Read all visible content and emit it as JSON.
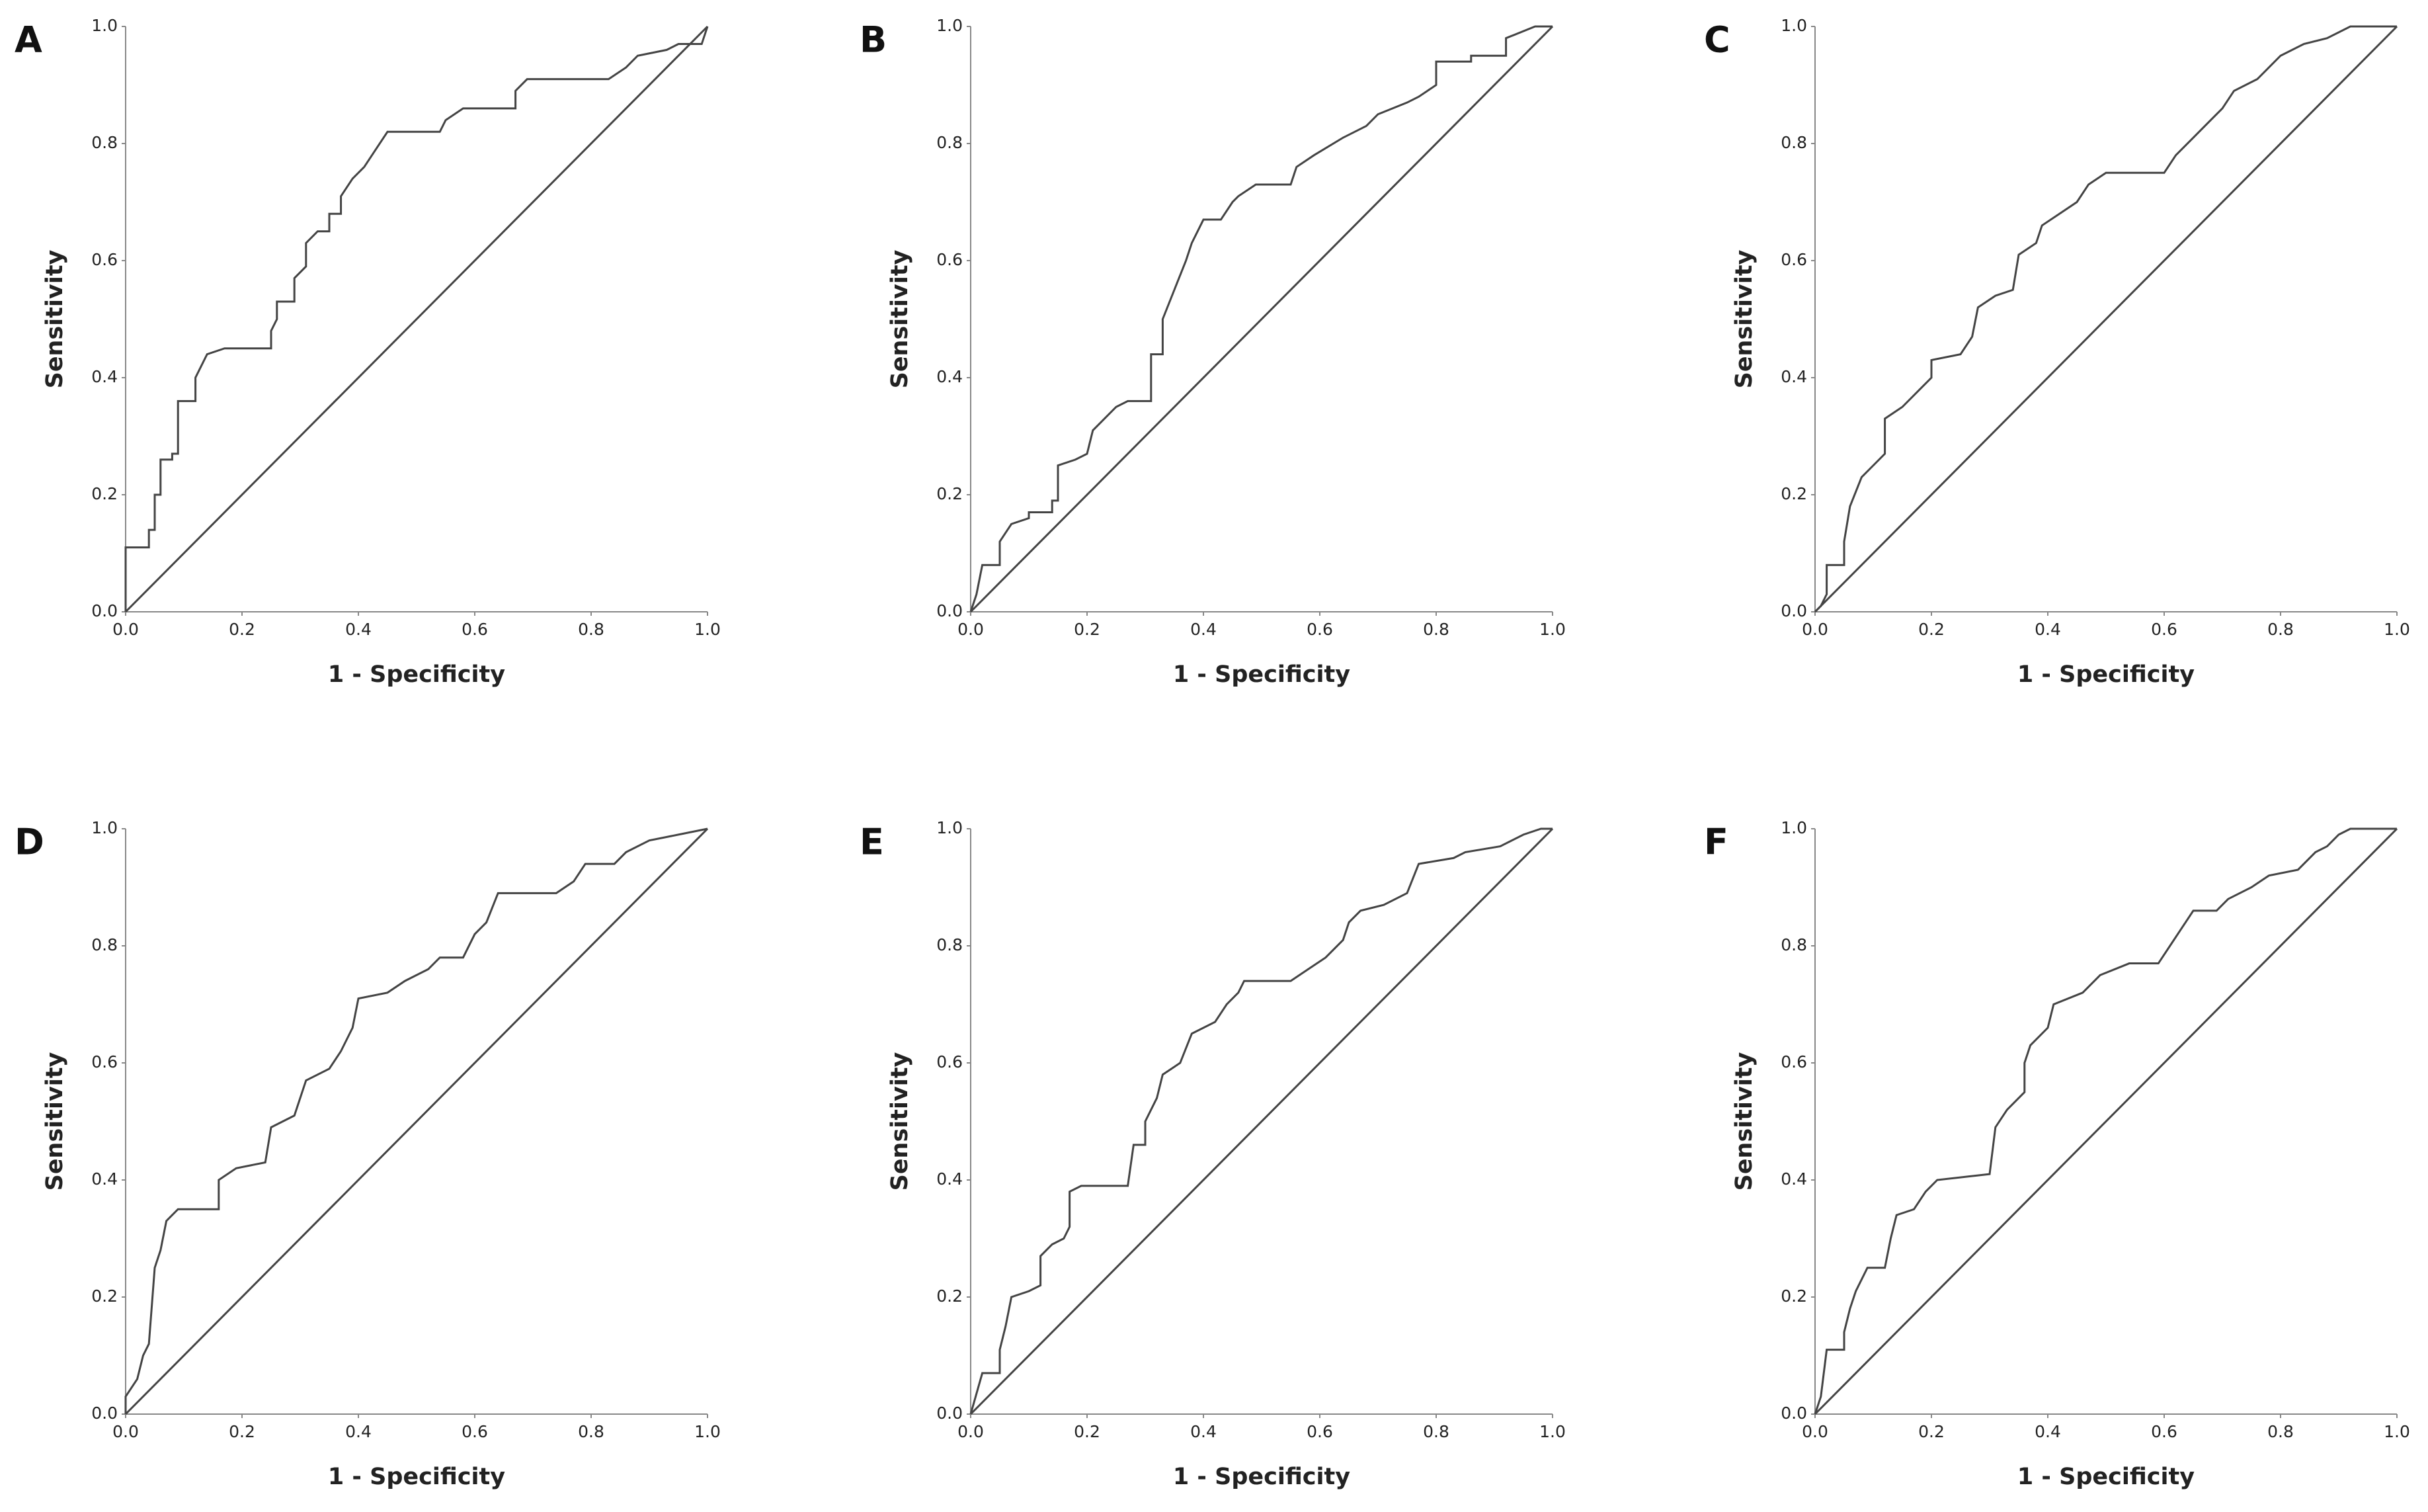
{
  "chart_data": [
    {
      "type": "line",
      "panel_label": "A",
      "xlabel": "1 - Specificity",
      "ylabel": "Sensitivity",
      "xlim": [
        0,
        1
      ],
      "ylim": [
        0,
        1
      ],
      "xticks": [
        {
          "value": 0,
          "label": "0.0"
        },
        0.2,
        0.4,
        0.6,
        0.8,
        {
          "value": 1,
          "label": "1.0"
        }
      ],
      "yticks": [
        {
          "value": 0,
          "label": "0.0"
        },
        0.2,
        0.4,
        0.6,
        0.8,
        {
          "value": 1,
          "label": "1.0"
        }
      ],
      "series": [
        {
          "color": "#444444",
          "x": [
            0,
            0,
            0.04,
            0.04,
            0.05,
            0.05,
            0.06,
            0.06,
            0.08,
            0.08,
            0.09,
            0.09,
            0.12,
            0.12,
            0.14,
            0.17,
            0.25,
            0.25,
            0.26,
            0.26,
            0.29,
            0.29,
            0.31,
            0.31,
            0.33,
            0.35,
            0.35,
            0.37,
            0.37,
            0.39,
            0.41,
            0.43,
            0.45,
            0.54,
            0.55,
            0.58,
            0.67,
            0.67,
            0.69,
            0.83,
            0.86,
            0.88,
            0.93,
            0.95,
            0.99,
            1
          ],
          "values": [
            0,
            0.11,
            0.11,
            0.14,
            0.14,
            0.2,
            0.2,
            0.26,
            0.26,
            0.27,
            0.27,
            0.36,
            0.36,
            0.4,
            0.44,
            0.45,
            0.45,
            0.48,
            0.5,
            0.53,
            0.53,
            0.57,
            0.59,
            0.63,
            0.65,
            0.65,
            0.68,
            0.68,
            0.71,
            0.74,
            0.76,
            0.79,
            0.82,
            0.82,
            0.84,
            0.86,
            0.86,
            0.89,
            0.91,
            0.91,
            0.93,
            0.95,
            0.96,
            0.97,
            0.97,
            1
          ]
        },
        {
          "color": "#444444",
          "x": [
            0,
            1
          ],
          "values": [
            0,
            1
          ]
        }
      ]
    },
    {
      "type": "line",
      "panel_label": "B",
      "xlabel": "1 - Specificity",
      "ylabel": "Sensitivity",
      "xlim": [
        0,
        1
      ],
      "ylim": [
        0,
        1
      ],
      "xticks": [
        {
          "value": 0,
          "label": "0.0"
        },
        0.2,
        0.4,
        0.6,
        0.8,
        {
          "value": 1,
          "label": "1.0"
        }
      ],
      "yticks": [
        {
          "value": 0,
          "label": "0.0"
        },
        0.2,
        0.4,
        0.6,
        0.8,
        {
          "value": 1,
          "label": "1.0"
        }
      ],
      "series": [
        {
          "color": "#444444",
          "x": [
            0,
            0.01,
            0.02,
            0.05,
            0.05,
            0.07,
            0.1,
            0.1,
            0.14,
            0.14,
            0.15,
            0.15,
            0.18,
            0.2,
            0.21,
            0.23,
            0.25,
            0.27,
            0.31,
            0.31,
            0.33,
            0.33,
            0.35,
            0.37,
            0.38,
            0.4,
            0.43,
            0.45,
            0.46,
            0.49,
            0.55,
            0.56,
            0.59,
            0.64,
            0.68,
            0.7,
            0.75,
            0.77,
            0.8,
            0.8,
            0.86,
            0.86,
            0.92,
            0.92,
            0.97,
            1
          ],
          "values": [
            0,
            0.03,
            0.08,
            0.08,
            0.12,
            0.15,
            0.16,
            0.17,
            0.17,
            0.19,
            0.19,
            0.25,
            0.26,
            0.27,
            0.31,
            0.33,
            0.35,
            0.36,
            0.36,
            0.44,
            0.44,
            0.5,
            0.55,
            0.6,
            0.63,
            0.67,
            0.67,
            0.7,
            0.71,
            0.73,
            0.73,
            0.76,
            0.78,
            0.81,
            0.83,
            0.85,
            0.87,
            0.88,
            0.9,
            0.94,
            0.94,
            0.95,
            0.95,
            0.98,
            1,
            1
          ]
        },
        {
          "color": "#444444",
          "x": [
            0,
            1
          ],
          "values": [
            0,
            1
          ]
        }
      ]
    },
    {
      "type": "line",
      "panel_label": "C",
      "xlabel": "1 - Specificity",
      "ylabel": "Sensitivity",
      "xlim": [
        0,
        1
      ],
      "ylim": [
        0,
        1
      ],
      "xticks": [
        {
          "value": 0,
          "label": "0.0"
        },
        0.2,
        0.4,
        0.6,
        0.8,
        {
          "value": 1,
          "label": "1.0"
        }
      ],
      "yticks": [
        {
          "value": 0,
          "label": "0.0"
        },
        0.2,
        0.4,
        0.6,
        0.8,
        {
          "value": 1,
          "label": "1.0"
        }
      ],
      "series": [
        {
          "color": "#444444",
          "x": [
            0,
            0.01,
            0.02,
            0.02,
            0.05,
            0.05,
            0.06,
            0.08,
            0.1,
            0.12,
            0.12,
            0.15,
            0.18,
            0.2,
            0.2,
            0.25,
            0.27,
            0.28,
            0.31,
            0.34,
            0.35,
            0.38,
            0.39,
            0.42,
            0.45,
            0.47,
            0.5,
            0.6,
            0.62,
            0.65,
            0.68,
            0.7,
            0.72,
            0.76,
            0.78,
            0.8,
            0.84,
            0.88,
            0.92,
            1
          ],
          "values": [
            0,
            0.01,
            0.03,
            0.08,
            0.08,
            0.12,
            0.18,
            0.23,
            0.25,
            0.27,
            0.33,
            0.35,
            0.38,
            0.4,
            0.43,
            0.44,
            0.47,
            0.52,
            0.54,
            0.55,
            0.61,
            0.63,
            0.66,
            0.68,
            0.7,
            0.73,
            0.75,
            0.75,
            0.78,
            0.81,
            0.84,
            0.86,
            0.89,
            0.91,
            0.93,
            0.95,
            0.97,
            0.98,
            1,
            1
          ]
        },
        {
          "color": "#444444",
          "x": [
            0,
            1
          ],
          "values": [
            0,
            1
          ]
        }
      ]
    },
    {
      "type": "line",
      "panel_label": "D",
      "xlabel": "1 - Specificity",
      "ylabel": "Sensitivity",
      "xlim": [
        0,
        1
      ],
      "ylim": [
        0,
        1
      ],
      "xticks": [
        {
          "value": 0,
          "label": "0.0"
        },
        0.2,
        0.4,
        0.6,
        0.8,
        {
          "value": 1,
          "label": "1.0"
        }
      ],
      "yticks": [
        {
          "value": 0,
          "label": "0.0"
        },
        0.2,
        0.4,
        0.6,
        0.8,
        {
          "value": 1,
          "label": "1.0"
        }
      ],
      "series": [
        {
          "color": "#444444",
          "x": [
            0,
            0,
            0.02,
            0.03,
            0.04,
            0.05,
            0.06,
            0.07,
            0.09,
            0.16,
            0.16,
            0.19,
            0.24,
            0.25,
            0.29,
            0.31,
            0.35,
            0.37,
            0.39,
            0.4,
            0.45,
            0.48,
            0.52,
            0.54,
            0.58,
            0.6,
            0.62,
            0.64,
            0.74,
            0.77,
            0.79,
            0.84,
            0.86,
            0.9,
            0.95,
            1
          ],
          "values": [
            0,
            0.03,
            0.06,
            0.1,
            0.12,
            0.25,
            0.28,
            0.33,
            0.35,
            0.35,
            0.4,
            0.42,
            0.43,
            0.49,
            0.51,
            0.57,
            0.59,
            0.62,
            0.66,
            0.71,
            0.72,
            0.74,
            0.76,
            0.78,
            0.78,
            0.82,
            0.84,
            0.89,
            0.89,
            0.91,
            0.94,
            0.94,
            0.96,
            0.98,
            0.99,
            1
          ]
        },
        {
          "color": "#444444",
          "x": [
            0,
            1
          ],
          "values": [
            0,
            1
          ]
        }
      ]
    },
    {
      "type": "line",
      "panel_label": "E",
      "xlabel": "1 - Specificity",
      "ylabel": "Sensitivity",
      "xlim": [
        0,
        1
      ],
      "ylim": [
        0,
        1
      ],
      "xticks": [
        {
          "value": 0,
          "label": "0.0"
        },
        0.2,
        0.4,
        0.6,
        0.8,
        {
          "value": 1,
          "label": "1.0"
        }
      ],
      "yticks": [
        {
          "value": 0,
          "label": "0.0"
        },
        0.2,
        0.4,
        0.6,
        0.8,
        {
          "value": 1,
          "label": "1.0"
        }
      ],
      "series": [
        {
          "color": "#444444",
          "x": [
            0,
            0.02,
            0.05,
            0.05,
            0.06,
            0.07,
            0.1,
            0.12,
            0.12,
            0.14,
            0.16,
            0.17,
            0.17,
            0.19,
            0.27,
            0.28,
            0.3,
            0.3,
            0.32,
            0.33,
            0.36,
            0.38,
            0.42,
            0.44,
            0.46,
            0.47,
            0.55,
            0.58,
            0.61,
            0.64,
            0.65,
            0.67,
            0.71,
            0.75,
            0.77,
            0.83,
            0.85,
            0.91,
            0.95,
            0.98,
            1
          ],
          "values": [
            0,
            0.07,
            0.07,
            0.11,
            0.15,
            0.2,
            0.21,
            0.22,
            0.27,
            0.29,
            0.3,
            0.32,
            0.38,
            0.39,
            0.39,
            0.46,
            0.46,
            0.5,
            0.54,
            0.58,
            0.6,
            0.65,
            0.67,
            0.7,
            0.72,
            0.74,
            0.74,
            0.76,
            0.78,
            0.81,
            0.84,
            0.86,
            0.87,
            0.89,
            0.94,
            0.95,
            0.96,
            0.97,
            0.99,
            1,
            1
          ]
        },
        {
          "color": "#444444",
          "x": [
            0,
            1
          ],
          "values": [
            0,
            1
          ]
        }
      ]
    },
    {
      "type": "line",
      "panel_label": "F",
      "xlabel": "1 - Specificity",
      "ylabel": "Sensitivity",
      "xlim": [
        0,
        1
      ],
      "ylim": [
        0,
        1
      ],
      "xticks": [
        {
          "value": 0,
          "label": "0.0"
        },
        0.2,
        0.4,
        0.6,
        0.8,
        {
          "value": 1,
          "label": "1.0"
        }
      ],
      "yticks": [
        {
          "value": 0,
          "label": "0.0"
        },
        0.2,
        0.4,
        0.6,
        0.8,
        {
          "value": 1,
          "label": "1.0"
        }
      ],
      "series": [
        {
          "color": "#444444",
          "x": [
            0,
            0.01,
            0.02,
            0.05,
            0.05,
            0.06,
            0.07,
            0.09,
            0.12,
            0.13,
            0.14,
            0.17,
            0.19,
            0.21,
            0.3,
            0.31,
            0.33,
            0.36,
            0.36,
            0.37,
            0.4,
            0.41,
            0.46,
            0.49,
            0.54,
            0.59,
            0.61,
            0.63,
            0.65,
            0.69,
            0.71,
            0.75,
            0.78,
            0.83,
            0.86,
            0.88,
            0.9,
            0.92,
            1
          ],
          "values": [
            0,
            0.03,
            0.11,
            0.11,
            0.14,
            0.18,
            0.21,
            0.25,
            0.25,
            0.3,
            0.34,
            0.35,
            0.38,
            0.4,
            0.41,
            0.49,
            0.52,
            0.55,
            0.6,
            0.63,
            0.66,
            0.7,
            0.72,
            0.75,
            0.77,
            0.77,
            0.8,
            0.83,
            0.86,
            0.86,
            0.88,
            0.9,
            0.92,
            0.93,
            0.96,
            0.97,
            0.99,
            1,
            1
          ]
        },
        {
          "color": "#444444",
          "x": [
            0,
            1
          ],
          "values": [
            0,
            1
          ]
        }
      ]
    }
  ]
}
